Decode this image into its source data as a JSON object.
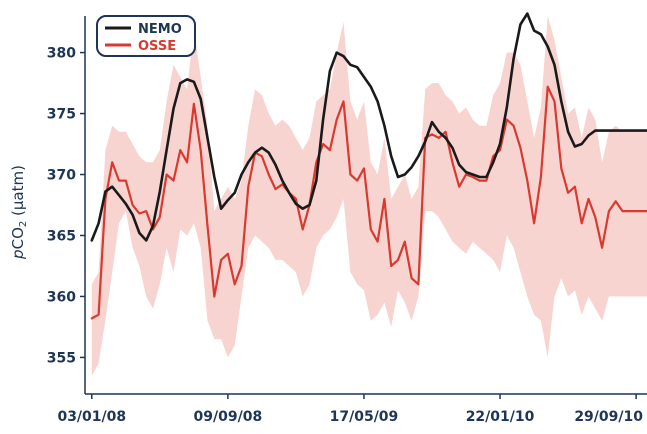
{
  "chart_data": {
    "type": "line",
    "title": "",
    "ylabel_prefix": "p",
    "ylabel_main": "CO",
    "ylabel_sub": "2",
    "ylabel_suffix": " (µatm)",
    "xlabel": "",
    "ylim": [
      352,
      383
    ],
    "yticks": [
      355,
      360,
      365,
      370,
      375,
      380
    ],
    "grid": false,
    "legend_position": "top-left",
    "x_dates": [
      "03/01/08",
      "09/09/08",
      "17/05/09",
      "22/01/10",
      "29/09/10"
    ],
    "x_range_index": [
      -0.05,
      4.08
    ],
    "series": [
      {
        "name": "NEMO",
        "color": "#1a1a1a",
        "x": [
          0.0,
          0.05,
          0.1,
          0.15,
          0.2,
          0.25,
          0.3,
          0.35,
          0.4,
          0.45,
          0.5,
          0.55,
          0.6,
          0.65,
          0.7,
          0.75,
          0.8,
          0.85,
          0.9,
          0.95,
          1.0,
          1.05,
          1.1,
          1.15,
          1.2,
          1.25,
          1.3,
          1.35,
          1.4,
          1.45,
          1.5,
          1.55,
          1.6,
          1.65,
          1.7,
          1.75,
          1.8,
          1.85,
          1.9,
          1.95,
          2.0,
          2.05,
          2.1,
          2.15,
          2.2,
          2.25,
          2.3,
          2.35,
          2.4,
          2.45,
          2.5,
          2.55,
          2.6,
          2.65,
          2.7,
          2.75,
          2.8,
          2.85,
          2.9,
          2.95,
          3.0,
          3.05,
          3.1,
          3.15,
          3.2,
          3.25,
          3.3,
          3.35,
          3.4,
          3.45,
          3.5,
          3.55,
          3.6,
          3.65,
          3.7,
          3.75,
          3.8,
          3.85,
          3.9,
          3.95,
          4.0,
          4.05,
          4.08
        ],
        "values": [
          364.6,
          366.0,
          368.6,
          369.0,
          368.3,
          367.6,
          366.7,
          365.2,
          364.6,
          365.8,
          368.6,
          372.0,
          375.4,
          377.5,
          377.8,
          377.6,
          376.2,
          373.0,
          369.8,
          367.2,
          367.9,
          368.5,
          370.0,
          371.0,
          371.8,
          372.2,
          371.8,
          370.8,
          369.5,
          368.5,
          367.6,
          367.2,
          367.5,
          369.5,
          374.5,
          378.5,
          380.0,
          379.7,
          379.0,
          378.8,
          378.0,
          377.2,
          376.0,
          374.0,
          371.5,
          369.8,
          370.0,
          370.6,
          371.5,
          372.7,
          374.3,
          373.5,
          373.0,
          372.2,
          370.8,
          370.2,
          370.0,
          369.8,
          369.8,
          371.0,
          372.5,
          375.5,
          379.5,
          382.3,
          383.2,
          381.8,
          381.5,
          380.5,
          379.0,
          376.0,
          373.5,
          372.3,
          372.5,
          373.2,
          373.6,
          373.6,
          373.6,
          373.6,
          373.6,
          373.6,
          373.6,
          373.6,
          373.6
        ]
      },
      {
        "name": "OSSE",
        "color": "#d93a2f",
        "x": [
          0.0,
          0.05,
          0.1,
          0.15,
          0.2,
          0.25,
          0.3,
          0.35,
          0.4,
          0.45,
          0.5,
          0.55,
          0.6,
          0.65,
          0.7,
          0.75,
          0.8,
          0.85,
          0.9,
          0.95,
          1.0,
          1.05,
          1.1,
          1.15,
          1.2,
          1.25,
          1.3,
          1.35,
          1.4,
          1.45,
          1.5,
          1.55,
          1.6,
          1.65,
          1.7,
          1.75,
          1.8,
          1.85,
          1.9,
          1.95,
          2.0,
          2.05,
          2.1,
          2.15,
          2.2,
          2.25,
          2.3,
          2.35,
          2.4,
          2.45,
          2.5,
          2.55,
          2.6,
          2.65,
          2.7,
          2.75,
          2.8,
          2.85,
          2.9,
          2.95,
          3.0,
          3.05,
          3.1,
          3.15,
          3.2,
          3.25,
          3.3,
          3.35,
          3.4,
          3.45,
          3.5,
          3.55,
          3.6,
          3.65,
          3.7,
          3.75,
          3.8,
          3.85,
          3.9,
          3.95,
          4.0,
          4.05,
          4.08
        ],
        "values": [
          358.2,
          358.5,
          368.0,
          371.0,
          369.5,
          369.5,
          367.5,
          366.8,
          367.0,
          365.5,
          366.5,
          370.0,
          369.5,
          372.0,
          371.0,
          375.8,
          372.0,
          365.8,
          360.0,
          363.0,
          363.5,
          361.0,
          362.5,
          369.0,
          371.8,
          371.5,
          370.0,
          368.8,
          369.2,
          368.5,
          368.0,
          365.5,
          367.5,
          371.0,
          372.5,
          372.0,
          374.5,
          376.0,
          370.0,
          369.5,
          370.5,
          365.5,
          364.5,
          368.0,
          362.5,
          363.0,
          364.5,
          361.5,
          361.0,
          373.0,
          373.3,
          373.0,
          373.5,
          371.0,
          369.0,
          370.0,
          369.8,
          369.5,
          369.5,
          371.5,
          372.0,
          374.5,
          374.0,
          372.2,
          369.5,
          366.0,
          369.8,
          377.2,
          376.0,
          370.5,
          368.5,
          369.0,
          366.0,
          368.0,
          366.5,
          364.0,
          367.0,
          367.8,
          367.0,
          367.0,
          367.0,
          367.0,
          367.0
        ],
        "band_lower": [
          353.5,
          354.5,
          358.0,
          362.0,
          366.0,
          367.0,
          364.0,
          362.5,
          360.0,
          359.0,
          361.0,
          364.0,
          362.0,
          365.5,
          365.0,
          366.0,
          364.0,
          358.0,
          356.5,
          356.5,
          355.0,
          356.0,
          360.0,
          364.0,
          365.0,
          364.5,
          364.0,
          363.0,
          363.0,
          362.5,
          362.0,
          360.0,
          361.0,
          364.0,
          365.0,
          365.5,
          366.5,
          368.0,
          362.0,
          361.0,
          360.5,
          358.0,
          358.5,
          359.5,
          357.5,
          360.5,
          359.5,
          358.0,
          360.0,
          367.0,
          367.0,
          366.5,
          365.5,
          364.5,
          364.0,
          363.5,
          364.5,
          364.0,
          363.5,
          363.0,
          362.0,
          365.0,
          364.0,
          362.0,
          360.0,
          358.5,
          358.0,
          355.0,
          360.0,
          361.5,
          360.0,
          360.5,
          358.5,
          360.0,
          359.0,
          358.0,
          360.0,
          360.0,
          360.0,
          360.0,
          360.0,
          360.0,
          360.0
        ],
        "band_upper": [
          361.0,
          362.0,
          372.0,
          374.0,
          373.5,
          373.5,
          372.5,
          371.5,
          371.0,
          371.0,
          372.0,
          376.0,
          379.0,
          378.0,
          377.0,
          382.0,
          378.0,
          374.0,
          367.0,
          368.0,
          369.0,
          368.0,
          369.5,
          374.0,
          377.0,
          376.5,
          375.0,
          374.0,
          374.5,
          374.0,
          373.0,
          372.0,
          373.0,
          376.0,
          376.5,
          377.0,
          380.0,
          382.5,
          376.0,
          374.5,
          376.0,
          371.0,
          370.0,
          373.0,
          368.0,
          369.0,
          370.0,
          368.0,
          369.0,
          377.0,
          377.5,
          377.5,
          376.5,
          376.0,
          375.0,
          375.5,
          374.5,
          374.0,
          374.0,
          376.5,
          377.5,
          380.0,
          380.0,
          379.0,
          376.0,
          373.0,
          375.5,
          383.0,
          381.0,
          378.0,
          375.0,
          375.5,
          373.0,
          375.5,
          374.5,
          371.0,
          373.5,
          374.0,
          373.5,
          373.5,
          373.5,
          373.5,
          373.5
        ]
      }
    ],
    "band_color": "#f4b7b2"
  }
}
